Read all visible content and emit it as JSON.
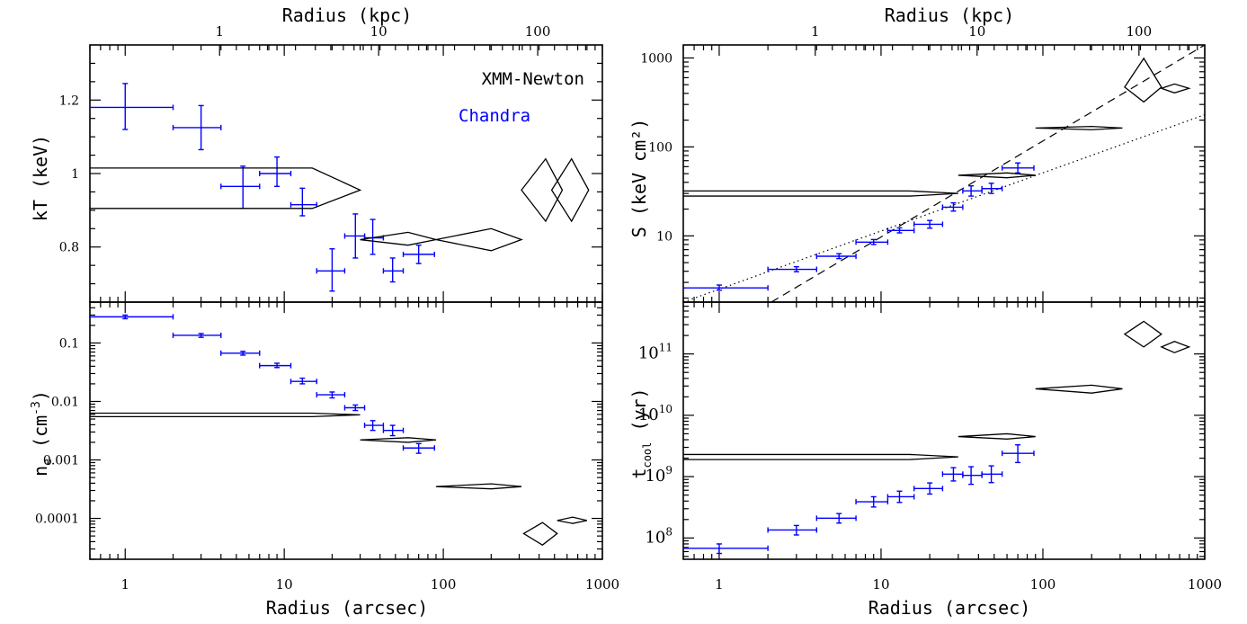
{
  "x_axes": {
    "bottom_label": "Radius (arcsec)",
    "top_label": "Radius (kpc)",
    "bottom_ticks": [
      "1",
      "10",
      "100",
      "1000"
    ],
    "top_ticks": [
      "1",
      "10",
      "100"
    ],
    "xlim_arcsec": [
      0.6,
      1000
    ],
    "kpc_per_arcsec": 0.255
  },
  "legend": {
    "xmm": "XMM-Newton",
    "chandra": "Chandra"
  },
  "colors": {
    "chandra": "#0000ff",
    "xmm": "#000000"
  },
  "chart_data": [
    {
      "type": "scatter",
      "panel": "top-left",
      "ylabel": "kT (keV)",
      "yscale": "linear",
      "ylim": [
        0.65,
        1.35
      ],
      "yticks": [
        {
          "v": 0.8,
          "t": "0.8"
        },
        {
          "v": 1.0,
          "t": "1"
        },
        {
          "v": 1.2,
          "t": "1.2"
        }
      ],
      "legend_position": "top-right",
      "series": [
        {
          "name": "Chandra",
          "points": [
            {
              "x": 1,
              "xlo": 0.55,
              "xhi": 2,
              "y": 1.18,
              "ylo": 1.12,
              "yhi": 1.245
            },
            {
              "x": 3,
              "xlo": 2,
              "xhi": 4,
              "y": 1.125,
              "ylo": 1.065,
              "yhi": 1.185
            },
            {
              "x": 5.5,
              "xlo": 4,
              "xhi": 7,
              "y": 0.965,
              "ylo": 0.905,
              "yhi": 1.02
            },
            {
              "x": 9,
              "xlo": 7,
              "xhi": 11,
              "y": 1.0,
              "ylo": 0.965,
              "yhi": 1.045
            },
            {
              "x": 13,
              "xlo": 11,
              "xhi": 16,
              "y": 0.915,
              "ylo": 0.885,
              "yhi": 0.96
            },
            {
              "x": 20,
              "xlo": 16,
              "xhi": 24,
              "y": 0.735,
              "ylo": 0.68,
              "yhi": 0.795
            },
            {
              "x": 28,
              "xlo": 24,
              "xhi": 32,
              "y": 0.83,
              "ylo": 0.77,
              "yhi": 0.89
            },
            {
              "x": 36,
              "xlo": 32,
              "xhi": 42,
              "y": 0.825,
              "ylo": 0.78,
              "yhi": 0.875
            },
            {
              "x": 48,
              "xlo": 42,
              "xhi": 56,
              "y": 0.735,
              "ylo": 0.705,
              "yhi": 0.77
            },
            {
              "x": 70,
              "xlo": 56,
              "xhi": 88,
              "y": 0.78,
              "ylo": 0.755,
              "yhi": 0.805
            }
          ]
        },
        {
          "name": "XMM-Newton",
          "shapes": [
            {
              "xlo": 0.55,
              "xc": 15,
              "xhi": 30,
              "ylo": 0.905,
              "yc": 0.955,
              "yhi": 1.015
            },
            {
              "xlo": 30,
              "xc": 60,
              "xhi": 90,
              "ylo": 0.805,
              "yc": 0.82,
              "yhi": 0.84
            },
            {
              "xlo": 90,
              "xc": 200,
              "xhi": 310,
              "ylo": 0.79,
              "yc": 0.82,
              "yhi": 0.85
            },
            {
              "xlo": 310,
              "xc": 440,
              "xhi": 560,
              "ylo": 0.87,
              "yc": 0.955,
              "yhi": 1.04
            },
            {
              "xlo": 480,
              "xc": 640,
              "xhi": 820,
              "ylo": 0.87,
              "yc": 0.955,
              "yhi": 1.04
            }
          ]
        }
      ]
    },
    {
      "type": "scatter",
      "panel": "bottom-left",
      "ylabel": "n",
      "ylabel_sub": "e",
      "ylabel_rest": " (cm",
      "ylabel_sup": "-3",
      "ylabel_end": ")",
      "yscale": "log",
      "ylim": [
        2e-05,
        0.5
      ],
      "yticks": [
        {
          "v": 0.0001,
          "t": "0.0001"
        },
        {
          "v": 0.001,
          "t": "0.001"
        },
        {
          "v": 0.01,
          "t": "0.01"
        },
        {
          "v": 0.1,
          "t": "0.1"
        }
      ],
      "series": [
        {
          "name": "Chandra",
          "points": [
            {
              "x": 1,
              "xlo": 0.55,
              "xhi": 2,
              "y": 0.28,
              "ylo": 0.26,
              "yhi": 0.3
            },
            {
              "x": 3,
              "xlo": 2,
              "xhi": 4,
              "y": 0.135,
              "ylo": 0.125,
              "yhi": 0.145
            },
            {
              "x": 5.5,
              "xlo": 4,
              "xhi": 7,
              "y": 0.067,
              "ylo": 0.062,
              "yhi": 0.072
            },
            {
              "x": 9,
              "xlo": 7,
              "xhi": 11,
              "y": 0.041,
              "ylo": 0.038,
              "yhi": 0.045
            },
            {
              "x": 13,
              "xlo": 11,
              "xhi": 16,
              "y": 0.022,
              "ylo": 0.02,
              "yhi": 0.025
            },
            {
              "x": 20,
              "xlo": 16,
              "xhi": 24,
              "y": 0.013,
              "ylo": 0.0115,
              "yhi": 0.0145
            },
            {
              "x": 28,
              "xlo": 24,
              "xhi": 32,
              "y": 0.0078,
              "ylo": 0.007,
              "yhi": 0.0087
            },
            {
              "x": 36,
              "xlo": 32,
              "xhi": 42,
              "y": 0.0039,
              "ylo": 0.0032,
              "yhi": 0.0047
            },
            {
              "x": 48,
              "xlo": 42,
              "xhi": 56,
              "y": 0.0032,
              "ylo": 0.0026,
              "yhi": 0.0039
            },
            {
              "x": 70,
              "xlo": 56,
              "xhi": 88,
              "y": 0.0016,
              "ylo": 0.0013,
              "yhi": 0.0019
            }
          ]
        },
        {
          "name": "XMM-Newton",
          "shapes": [
            {
              "xlo": 0.55,
              "xc": 15,
              "xhi": 30,
              "ylo": 0.0055,
              "yc": 0.0059,
              "yhi": 0.0063
            },
            {
              "xlo": 30,
              "xc": 60,
              "xhi": 90,
              "ylo": 0.002,
              "yc": 0.0022,
              "yhi": 0.0024
            },
            {
              "xlo": 90,
              "xc": 200,
              "xhi": 310,
              "ylo": 0.00032,
              "yc": 0.00035,
              "yhi": 0.00039
            },
            {
              "xlo": 320,
              "xc": 420,
              "xhi": 520,
              "ylo": 3.5e-05,
              "yc": 5.5e-05,
              "yhi": 8.5e-05
            },
            {
              "xlo": 520,
              "xc": 650,
              "xhi": 800,
              "ylo": 8.2e-05,
              "yc": 9.2e-05,
              "yhi": 0.000105
            }
          ]
        }
      ]
    },
    {
      "type": "scatter",
      "panel": "top-right",
      "ylabel": "S (keV cm²)",
      "yscale": "log",
      "ylim": [
        1.8,
        1400
      ],
      "yticks": [
        {
          "v": 10,
          "t": "10"
        },
        {
          "v": 100,
          "t": "100"
        },
        {
          "v": 1000,
          "t": "1000"
        }
      ],
      "series": [
        {
          "name": "Chandra",
          "points": [
            {
              "x": 1,
              "xlo": 0.55,
              "xhi": 2,
              "y": 2.6,
              "ylo": 2.45,
              "yhi": 2.8
            },
            {
              "x": 3,
              "xlo": 2,
              "xhi": 4,
              "y": 4.2,
              "ylo": 3.95,
              "yhi": 4.5
            },
            {
              "x": 5.5,
              "xlo": 4,
              "xhi": 7,
              "y": 5.9,
              "ylo": 5.55,
              "yhi": 6.3
            },
            {
              "x": 9,
              "xlo": 7,
              "xhi": 11,
              "y": 8.5,
              "ylo": 8.0,
              "yhi": 9.1
            },
            {
              "x": 13,
              "xlo": 11,
              "xhi": 16,
              "y": 11.5,
              "ylo": 10.8,
              "yhi": 12.3
            },
            {
              "x": 20,
              "xlo": 16,
              "xhi": 24,
              "y": 13.5,
              "ylo": 12.2,
              "yhi": 14.9
            },
            {
              "x": 28,
              "xlo": 24,
              "xhi": 32,
              "y": 21,
              "ylo": 19,
              "yhi": 23.5
            },
            {
              "x": 36,
              "xlo": 32,
              "xhi": 42,
              "y": 32,
              "ylo": 28,
              "yhi": 36.5
            },
            {
              "x": 48,
              "xlo": 42,
              "xhi": 56,
              "y": 34,
              "ylo": 30,
              "yhi": 39
            },
            {
              "x": 70,
              "xlo": 56,
              "xhi": 88,
              "y": 58,
              "ylo": 51,
              "yhi": 66
            }
          ]
        },
        {
          "name": "XMM-Newton",
          "shapes": [
            {
              "xlo": 0.55,
              "xc": 15,
              "xhi": 30,
              "ylo": 28,
              "yc": 30,
              "yhi": 32
            },
            {
              "xlo": 30,
              "xc": 60,
              "xhi": 90,
              "ylo": 45,
              "yc": 48,
              "yhi": 51
            },
            {
              "xlo": 90,
              "xc": 200,
              "xhi": 310,
              "ylo": 156,
              "yc": 163,
              "yhi": 170
            },
            {
              "xlo": 320,
              "xc": 420,
              "xhi": 540,
              "ylo": 320,
              "yc": 470,
              "yhi": 990
            },
            {
              "xlo": 540,
              "xc": 650,
              "xhi": 800,
              "ylo": 405,
              "yc": 455,
              "yhi": 510
            }
          ]
        }
      ],
      "lines": [
        {
          "style": "dashed",
          "x": [
            2.1,
            1000
          ],
          "y": [
            1.8,
            1400
          ]
        },
        {
          "style": "dotted",
          "x": [
            0.6,
            1000
          ],
          "y": [
            1.8,
            230
          ]
        }
      ]
    },
    {
      "type": "scatter",
      "panel": "bottom-right",
      "ylabel": "t",
      "ylabel_sub": "cool",
      "ylabel_rest": " (yr)",
      "yscale": "log",
      "ylim": [
        45000000,
        700000000000
      ],
      "yticks": [
        {
          "v": 100000000,
          "t": "10",
          "s": "8"
        },
        {
          "v": 1000000000,
          "t": "10",
          "s": "9"
        },
        {
          "v": 10000000000,
          "t": "10",
          "s": "10"
        },
        {
          "v": 100000000000,
          "t": "10",
          "s": "11"
        }
      ],
      "series": [
        {
          "name": "Chandra",
          "points": [
            {
              "x": 1,
              "xlo": 0.55,
              "xhi": 2,
              "y": 68000000,
              "ylo": 56000000,
              "yhi": 80000000
            },
            {
              "x": 3,
              "xlo": 2,
              "xhi": 4,
              "y": 135000000,
              "ylo": 112000000,
              "yhi": 160000000
            },
            {
              "x": 5.5,
              "xlo": 4,
              "xhi": 7,
              "y": 210000000,
              "ylo": 175000000,
              "yhi": 250000000
            },
            {
              "x": 9,
              "xlo": 7,
              "xhi": 11,
              "y": 390000000,
              "ylo": 320000000,
              "yhi": 470000000
            },
            {
              "x": 13,
              "xlo": 11,
              "xhi": 16,
              "y": 470000000,
              "ylo": 380000000,
              "yhi": 580000000
            },
            {
              "x": 20,
              "xlo": 16,
              "xhi": 24,
              "y": 640000000,
              "ylo": 520000000,
              "yhi": 790000000
            },
            {
              "x": 28,
              "xlo": 24,
              "xhi": 32,
              "y": 1100000000,
              "ylo": 850000000,
              "yhi": 1400000000
            },
            {
              "x": 36,
              "xlo": 32,
              "xhi": 42,
              "y": 1050000000,
              "ylo": 750000000,
              "yhi": 1450000000
            },
            {
              "x": 48,
              "xlo": 42,
              "xhi": 56,
              "y": 1100000000,
              "ylo": 800000000,
              "yhi": 1500000000
            },
            {
              "x": 70,
              "xlo": 56,
              "xhi": 88,
              "y": 2400000000,
              "ylo": 1700000000,
              "yhi": 3300000000
            }
          ]
        },
        {
          "name": "XMM-Newton",
          "shapes": [
            {
              "xlo": 0.55,
              "xc": 15,
              "xhi": 30,
              "ylo": 1900000000,
              "yc": 2100000000,
              "yhi": 2300000000
            },
            {
              "xlo": 30,
              "xc": 60,
              "xhi": 90,
              "ylo": 4100000000,
              "yc": 4500000000,
              "yhi": 5000000000
            },
            {
              "xlo": 90,
              "xc": 200,
              "xhi": 310,
              "ylo": 23000000000,
              "yc": 27000000000,
              "yhi": 31000000000
            },
            {
              "xlo": 320,
              "xc": 420,
              "xhi": 540,
              "ylo": 130000000000,
              "yc": 210000000000,
              "yhi": 340000000000
            },
            {
              "xlo": 540,
              "xc": 650,
              "xhi": 800,
              "ylo": 105000000000,
              "yc": 130000000000,
              "yhi": 160000000000
            }
          ]
        }
      ]
    }
  ]
}
